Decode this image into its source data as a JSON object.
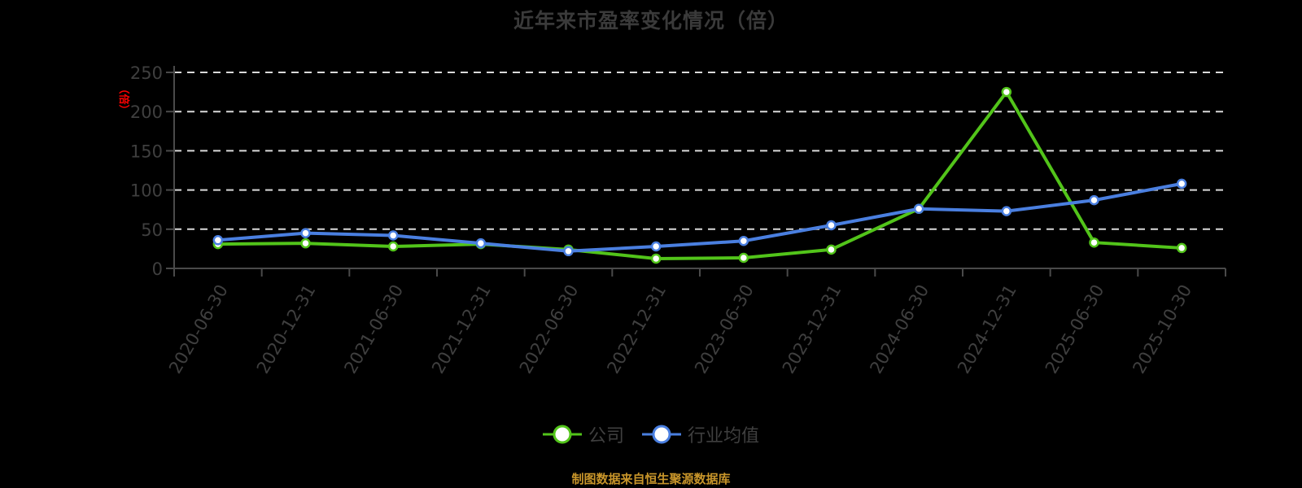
{
  "title": "近年来市盈率变化情况（倍）",
  "y_unit_label": "（倍）",
  "legend": [
    {
      "label": "公司",
      "color": "#52c41a"
    },
    {
      "label": "行业均值",
      "color": "#4a7fe0"
    }
  ],
  "footer": "制图数据来自恒生聚源数据库",
  "colors": {
    "background": "#000000",
    "company": "#52c41a",
    "industry": "#4a7fe0",
    "grid": "#d9d9d9",
    "axis": "#4a4a4a",
    "tick_text": "#3f3f3f",
    "footer": "#c8952a"
  },
  "chart_data": {
    "type": "line",
    "title": "近年来市盈率变化情况（倍）",
    "xlabel": "",
    "ylabel": "倍",
    "ylim": [
      0,
      250
    ],
    "yticks": [
      0,
      50,
      100,
      150,
      200,
      250
    ],
    "grid": true,
    "legend_position": "bottom",
    "categories": [
      "2020-06-30",
      "2020-12-31",
      "2021-06-30",
      "2021-12-31",
      "2022-06-30",
      "2022-12-31",
      "2023-06-30",
      "2023-12-31",
      "2024-06-30",
      "2024-12-31",
      "2025-06-30",
      "2025-10-30"
    ],
    "series": [
      {
        "name": "公司",
        "values": [
          31,
          32,
          28,
          31,
          24,
          12.5,
          13.5,
          24,
          76,
          225,
          33,
          26
        ]
      },
      {
        "name": "行业均值",
        "values": [
          36,
          45,
          42,
          32,
          22,
          28,
          35,
          55,
          76,
          73,
          87,
          108
        ]
      }
    ]
  }
}
